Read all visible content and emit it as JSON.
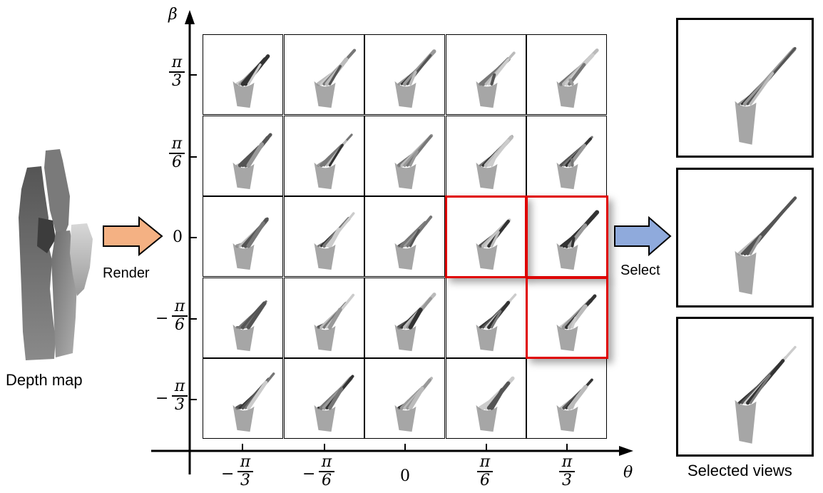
{
  "left": {
    "caption": "Depth map",
    "arrow_label": "Render",
    "arrow_color": "#f4b183"
  },
  "grid": {
    "y_axis_symbol": "β",
    "x_axis_symbol": "θ",
    "y_ticks": [
      {
        "sign": "",
        "num": "π",
        "den": "3"
      },
      {
        "sign": "",
        "num": "π",
        "den": "6"
      },
      {
        "sign": "",
        "num": "0",
        "den": ""
      },
      {
        "sign": "−",
        "num": "π",
        "den": "6"
      },
      {
        "sign": "−",
        "num": "π",
        "den": "3"
      }
    ],
    "x_ticks": [
      {
        "sign": "−",
        "num": "π",
        "den": "3"
      },
      {
        "sign": "−",
        "num": "π",
        "den": "6"
      },
      {
        "sign": "",
        "num": "0",
        "den": ""
      },
      {
        "sign": "",
        "num": "π",
        "den": "6"
      },
      {
        "sign": "",
        "num": "π",
        "den": "3"
      }
    ],
    "rows": 5,
    "cols": 5,
    "highlighted_cells": [
      [
        2,
        3
      ],
      [
        2,
        4
      ],
      [
        3,
        4
      ]
    ],
    "highlight_color": "#e00000"
  },
  "right": {
    "arrow_label": "Select",
    "arrow_color": "#8faadc",
    "caption": "Selected views"
  }
}
